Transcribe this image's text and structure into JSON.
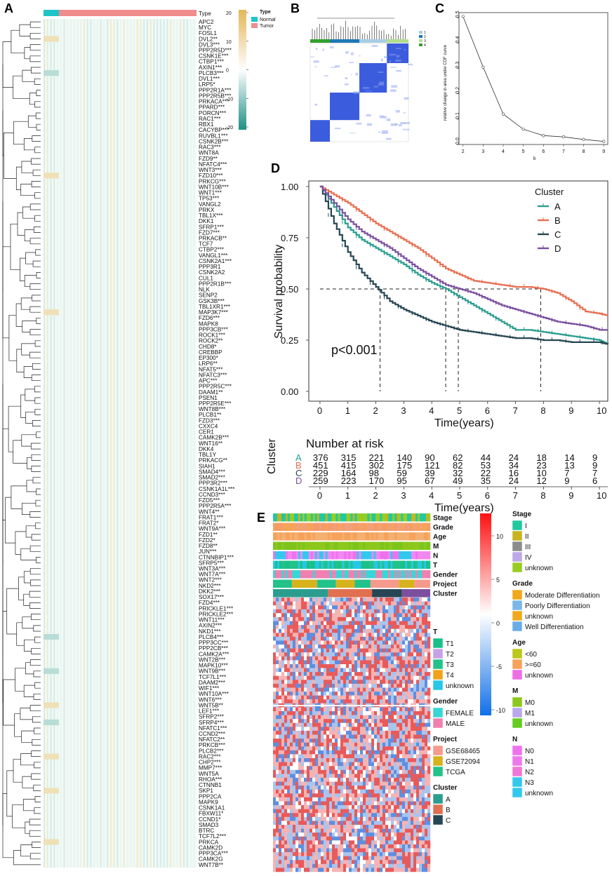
{
  "panels": {
    "A": "A",
    "B": "B",
    "C": "C",
    "D": "D",
    "E": "E"
  },
  "heatmap_a": {
    "type_header": "Type",
    "legend_title": "Type",
    "legend_items": [
      {
        "label": "Normal",
        "color": "#1fc4c8"
      },
      {
        "label": "Tumor",
        "color": "#f08c8c"
      }
    ],
    "scale_ticks": [
      "20",
      "10",
      "0",
      "-10",
      "-20"
    ],
    "colors": {
      "low": "#1f8f86",
      "mid": "#ffffff",
      "high": "#e3b65a",
      "normal": "#1fc4c8",
      "tumor": "#f08c8c"
    },
    "genes": [
      "APC2",
      "MYC",
      "FOSL1",
      "DVL2**",
      "DVL3***",
      "PPP2R5D***",
      "CSNK1E***",
      "CTBP1***",
      "AXIN1***",
      "PLCB3***",
      "DVL1***",
      "LRP5*",
      "PPP2R1A***",
      "PPP2R5B***",
      "PRKACA***",
      "PPARD***",
      "PORCN***",
      "RAC1***",
      "RBX1",
      "CACYBP***",
      "RUVBL1***",
      "CSNK2B***",
      "RAC3***",
      "WNT8A",
      "FZD9**",
      "NFATC4***",
      "WNT3***",
      "FZD10***",
      "PRKCG***",
      "WNT10B***",
      "WNT1***",
      "TP53***",
      "VANGL2",
      "PRKX",
      "TBL1X***",
      "DKK1",
      "SFRP1***",
      "FZD7***",
      "PRKACB**",
      "TCF7",
      "CTBP2***",
      "VANGL1***",
      "CSNK2A1***",
      "PPP3R1",
      "CSNK2A2",
      "CUL1",
      "PPP2R1B***",
      "NLK",
      "SENP2",
      "GSK3B***",
      "TBL1XR1***",
      "MAP3K7***",
      "FZD6***",
      "MAPK8",
      "PPP3CB***",
      "ROCK1***",
      "ROCK2**",
      "CHD8*",
      "CREBBP",
      "EP300*",
      "LRP6**",
      "NFAT5***",
      "NFATC3***",
      "APC***",
      "PPP2R5C***",
      "DAAM1**",
      "PSEN1",
      "PPP2R5E***",
      "WNT8B***",
      "PLCB1**",
      "FZD3***",
      "CXXC4",
      "CER1",
      "CAMK2B***",
      "WNT16**",
      "DKK4",
      "TBL1Y",
      "PRKACG**",
      "SIAH1",
      "SMAD4***",
      "SMAD2***",
      "PPP3R2***",
      "CSNK1A1L***",
      "CCND3***",
      "FZD5***",
      "PPP2R5A***",
      "WNT4**",
      "FRAT1***",
      "FRAT2*",
      "WNT9A***",
      "FZD1**",
      "FZD2*",
      "FZD8**",
      "JUN***",
      "CTNNBIP1***",
      "SFRP5***",
      "WNT3A***",
      "WNT7A***",
      "WNT2***",
      "NKD2***",
      "DKK2***",
      "SOX17***",
      "FZD4***",
      "PRICKLE1***",
      "PRICKLE2***",
      "WNT11***",
      "AXIN2***",
      "NKD1***",
      "PLCB4***",
      "PPP3CC***",
      "PPP2CB***",
      "CAMK2A***",
      "WNT2B***",
      "MAPK10***",
      "WNT9B***",
      "TCF7L1***",
      "DAAM2***",
      "WIF1***",
      "WNT10A***",
      "WNT6***",
      "WNT5B**",
      "LEF1***",
      "SFRP2***",
      "SFRP4***",
      "NFATC1***",
      "CCND2***",
      "NFATC2**",
      "PRKCB***",
      "PLCB2***",
      "RAC2***",
      "CHP2***",
      "MMP7***",
      "WNT5A",
      "RHOA***",
      "CTNNB1",
      "SKP1",
      "PPP2CA",
      "MAPK9",
      "CSNK1A1",
      "FBXW11*",
      "CCND1*",
      "SMAD3",
      "BTRC",
      "TCF7L2***",
      "PRKCA",
      "CAMK2D",
      "PPP3CA***",
      "CAMK2G",
      "WNT7B**"
    ]
  },
  "consensus_b": {
    "legend": [
      "1",
      "2",
      "3",
      "4"
    ],
    "colors": [
      "#a6cee3",
      "#1f78b4",
      "#b2df8a",
      "#33a02c"
    ]
  },
  "chart_data": [
    {
      "type": "line",
      "panel": "C",
      "x": [
        2,
        3,
        4,
        5,
        6,
        7,
        8,
        9
      ],
      "values": [
        0.505,
        0.305,
        0.12,
        0.06,
        0.035,
        0.03,
        0.02,
        0.012
      ],
      "xlabel": "k",
      "ylabel": "relative change in area under CDF curve",
      "xticks": [
        "2",
        "3",
        "4",
        "5",
        "6",
        "7",
        "8",
        "9"
      ],
      "yticks": [
        "0.0",
        "0.1",
        "0.2",
        "0.3",
        "0.4",
        "0.5"
      ],
      "ylim": [
        0,
        0.52
      ]
    },
    {
      "type": "line",
      "panel": "D",
      "title": "Survival probability",
      "xlabel": "Time(years)",
      "ylabel": "Survival probability",
      "xticks": [
        "0",
        "1",
        "2",
        "3",
        "4",
        "5",
        "6",
        "7",
        "8",
        "9",
        "10"
      ],
      "yticks": [
        "0.00",
        "0.25",
        "0.50",
        "0.75",
        "1.00"
      ],
      "xlim": [
        0,
        10.3
      ],
      "ylim": [
        0,
        1.0
      ],
      "legend_title": "Cluster",
      "pvalue": "p<0.001",
      "medians": [
        2.15,
        4.5,
        4.95,
        7.9
      ],
      "series": [
        {
          "name": "A",
          "color": "#2a9d8f",
          "x": [
            0,
            0.5,
            1,
            1.5,
            2,
            2.5,
            3,
            3.5,
            4,
            4.5,
            5,
            5.5,
            6,
            6.5,
            7,
            7.5,
            8,
            8.5,
            9,
            9.5,
            10,
            10.3
          ],
          "values": [
            1,
            0.9,
            0.8,
            0.74,
            0.7,
            0.66,
            0.62,
            0.57,
            0.53,
            0.5,
            0.46,
            0.42,
            0.38,
            0.34,
            0.3,
            0.3,
            0.29,
            0.28,
            0.27,
            0.26,
            0.25,
            0.23
          ]
        },
        {
          "name": "B",
          "color": "#e76f51",
          "x": [
            0,
            0.5,
            1,
            1.5,
            2,
            2.5,
            3,
            3.5,
            4,
            4.5,
            5,
            5.5,
            6,
            6.5,
            7,
            7.5,
            8,
            8.5,
            9,
            9.5,
            10,
            10.3
          ],
          "values": [
            1,
            0.96,
            0.92,
            0.87,
            0.82,
            0.78,
            0.74,
            0.7,
            0.65,
            0.6,
            0.57,
            0.54,
            0.53,
            0.52,
            0.51,
            0.51,
            0.5,
            0.48,
            0.44,
            0.39,
            0.38,
            0.37
          ]
        },
        {
          "name": "C",
          "color": "#264653",
          "x": [
            0,
            0.5,
            1,
            1.5,
            2,
            2.5,
            3,
            3.5,
            4,
            4.5,
            5,
            5.5,
            6,
            6.5,
            7,
            7.5,
            8,
            8.5,
            9,
            9.5,
            10,
            10.3
          ],
          "values": [
            1,
            0.82,
            0.68,
            0.58,
            0.51,
            0.44,
            0.4,
            0.37,
            0.34,
            0.32,
            0.3,
            0.29,
            0.28,
            0.27,
            0.26,
            0.26,
            0.25,
            0.25,
            0.24,
            0.24,
            0.24,
            0.23
          ]
        },
        {
          "name": "D",
          "color": "#7b4f9e",
          "x": [
            0,
            0.5,
            1,
            1.5,
            2,
            2.5,
            3,
            3.5,
            4,
            4.5,
            5,
            5.5,
            6,
            6.5,
            7,
            7.5,
            8,
            8.5,
            9,
            9.5,
            10,
            10.3
          ],
          "values": [
            1,
            0.92,
            0.84,
            0.78,
            0.74,
            0.7,
            0.65,
            0.6,
            0.56,
            0.52,
            0.5,
            0.48,
            0.45,
            0.42,
            0.4,
            0.38,
            0.36,
            0.34,
            0.33,
            0.32,
            0.3,
            0.3
          ]
        }
      ]
    }
  ],
  "risk_table": {
    "title": "Number at risk",
    "ylabel": "Cluster",
    "xlabel": "Time(years)",
    "times": [
      "0",
      "1",
      "2",
      "3",
      "4",
      "5",
      "6",
      "7",
      "8",
      "9",
      "10"
    ],
    "rows": [
      {
        "name": "A",
        "color": "#2a9d8f",
        "counts": [
          "376",
          "315",
          "221",
          "140",
          "90",
          "62",
          "44",
          "24",
          "18",
          "14",
          "9"
        ]
      },
      {
        "name": "B",
        "color": "#e76f51",
        "counts": [
          "451",
          "415",
          "302",
          "175",
          "121",
          "82",
          "53",
          "34",
          "23",
          "13",
          "9"
        ]
      },
      {
        "name": "C",
        "color": "#264653",
        "counts": [
          "229",
          "164",
          "98",
          "59",
          "39",
          "32",
          "22",
          "16",
          "10",
          "7",
          "7"
        ]
      },
      {
        "name": "D",
        "color": "#7b4f9e",
        "counts": [
          "259",
          "223",
          "170",
          "95",
          "67",
          "49",
          "35",
          "24",
          "12",
          "9",
          "6"
        ]
      }
    ]
  },
  "heatmap_e": {
    "annotations": [
      "Stage",
      "Grade",
      "Age",
      "M",
      "N",
      "T",
      "Gender",
      "Project",
      "Cluster"
    ],
    "scale_ticks": [
      "10",
      "5",
      "0",
      "-5",
      "-10"
    ],
    "legends_mid": [
      {
        "title": "T",
        "items": [
          {
            "label": "T1",
            "color": "#19c08a"
          },
          {
            "label": "T2",
            "color": "#c7a2e8"
          },
          {
            "label": "T3",
            "color": "#22c28a"
          },
          {
            "label": "T4",
            "color": "#f0a21a"
          },
          {
            "label": "unknown",
            "color": "#26c7e8"
          }
        ]
      },
      {
        "title": "Gender",
        "items": [
          {
            "label": "FEMALE",
            "color": "#38d6d6"
          },
          {
            "label": "MALE",
            "color": "#f080b0"
          }
        ]
      },
      {
        "title": "Project",
        "items": [
          {
            "label": "GSE68465",
            "color": "#f59a8c"
          },
          {
            "label": "GSE72094",
            "color": "#d6b21c"
          },
          {
            "label": "TCGA",
            "color": "#22c28a"
          }
        ]
      },
      {
        "title": "Cluster",
        "items": [
          {
            "label": "A",
            "color": "#2a9d8f"
          },
          {
            "label": "B",
            "color": "#e07050"
          },
          {
            "label": "C",
            "color": "#264653"
          }
        ]
      }
    ],
    "legends_right": [
      {
        "title": "Stage",
        "items": [
          {
            "label": "I",
            "color": "#21c9a0"
          },
          {
            "label": "II",
            "color": "#c8b41e"
          },
          {
            "label": "III",
            "color": "#8c8c8c"
          },
          {
            "label": "IV",
            "color": "#bba9e8"
          },
          {
            "label": "unknown",
            "color": "#99cc22"
          }
        ]
      },
      {
        "title": "Grade",
        "items": [
          {
            "label": "Moderate Differentiation",
            "color": "#f0a81c"
          },
          {
            "label": "Poorly Differentiation",
            "color": "#7ab8e8"
          },
          {
            "label": "unknown",
            "color": "#f0a81c"
          },
          {
            "label": "Well Differentiation",
            "color": "#6aace8"
          }
        ]
      },
      {
        "title": "Age",
        "items": [
          {
            "label": "<60",
            "color": "#bcc81a"
          },
          {
            "label": ">=60",
            "color": "#f7a25a"
          },
          {
            "label": "unknown",
            "color": "#ee6ee6"
          }
        ]
      },
      {
        "title": "M",
        "items": [
          {
            "label": "M0",
            "color": "#8cc81c"
          },
          {
            "label": "M1",
            "color": "#b9a8ee"
          },
          {
            "label": "unknown",
            "color": "#66cc22"
          }
        ]
      },
      {
        "title": "N",
        "items": [
          {
            "label": "N0",
            "color": "#ee72ee"
          },
          {
            "label": "N1",
            "color": "#ee78ee"
          },
          {
            "label": "N2",
            "color": "#ee78d8"
          },
          {
            "label": "N3",
            "color": "#33c8ee"
          },
          {
            "label": "unknown",
            "color": "#33c8ee"
          }
        ]
      }
    ]
  }
}
